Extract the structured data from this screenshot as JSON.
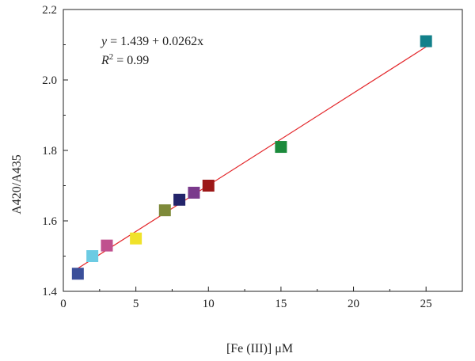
{
  "chart_data": {
    "type": "scatter",
    "xlabel": "[Fe (III)] μM",
    "ylabel": "A420/A435",
    "xlim": [
      0,
      27.5
    ],
    "ylim": [
      1.4,
      2.2
    ],
    "xticks": [
      0,
      5,
      10,
      15,
      20,
      25
    ],
    "yticks": [
      1.4,
      1.6,
      1.8,
      2.0,
      2.2
    ],
    "xtick_labels": [
      "0",
      "5",
      "10",
      "15",
      "20",
      "25"
    ],
    "ytick_labels": [
      "1.4",
      "1.6",
      "1.8",
      "2.0",
      "2.2"
    ],
    "grid": false,
    "points": [
      {
        "x": 1,
        "y": 1.45,
        "color": "#3b4f9a"
      },
      {
        "x": 2,
        "y": 1.5,
        "color": "#6ccbe3"
      },
      {
        "x": 3,
        "y": 1.53,
        "color": "#c0508e"
      },
      {
        "x": 5,
        "y": 1.55,
        "color": "#f0e22a"
      },
      {
        "x": 7,
        "y": 1.63,
        "color": "#7e8a3a"
      },
      {
        "x": 8,
        "y": 1.66,
        "color": "#23246b"
      },
      {
        "x": 9,
        "y": 1.68,
        "color": "#7a3a8c"
      },
      {
        "x": 10,
        "y": 1.7,
        "color": "#9c1717"
      },
      {
        "x": 15,
        "y": 1.81,
        "color": "#1b8a3b"
      },
      {
        "x": 25,
        "y": 2.11,
        "color": "#12808a"
      }
    ],
    "fit": {
      "intercept": 1.439,
      "slope": 0.0262,
      "x_range": [
        1,
        25
      ],
      "color": "#e3262a"
    },
    "annotations": {
      "equation_prefix": "y",
      "equation_rest": " = 1.439 + 0.0262x",
      "r2_prefix": "R",
      "r2_sup": "2",
      "r2_rest": " = 0.99"
    }
  }
}
